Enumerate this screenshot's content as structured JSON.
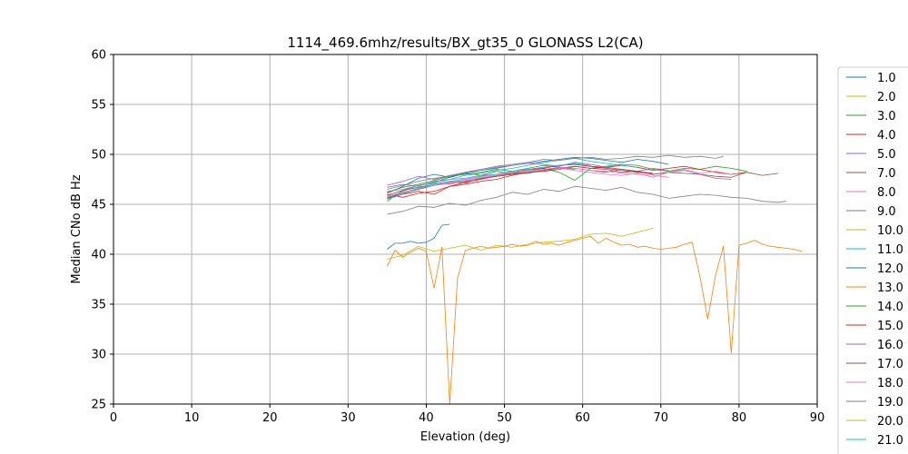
{
  "chart_data": {
    "type": "line",
    "title": "1114_469.6mhz/results/BX_gt35_0 GLONASS L2(CA)",
    "xlabel": "Elevation (deg)",
    "ylabel": "Median CNo dB Hz",
    "xlim": [
      0,
      90
    ],
    "ylim": [
      25,
      60
    ],
    "xticks": [
      0,
      10,
      20,
      30,
      40,
      50,
      60,
      70,
      80,
      90
    ],
    "yticks": [
      25,
      30,
      35,
      40,
      45,
      50,
      55,
      60
    ],
    "grid": true,
    "legend_position": "right, outside plot (clipped at bottom)",
    "series": [
      {
        "name": "1.0",
        "color": "#1f77b4",
        "x": [
          35,
          36,
          37,
          38,
          39,
          40,
          41,
          42,
          43
        ],
        "y": [
          40.5,
          41.1,
          41.1,
          41.3,
          41.1,
          41.2,
          41.6,
          42.9,
          43.0
        ]
      },
      {
        "name": "2.0",
        "color": "#bcbd22",
        "x": [
          35,
          37,
          39,
          41,
          43,
          45,
          47,
          49,
          51,
          53,
          55,
          57,
          59,
          61,
          63,
          65,
          67,
          69
        ],
        "y": [
          39.5,
          39.9,
          40.8,
          40.3,
          40.6,
          40.9,
          40.4,
          40.9,
          40.7,
          41.0,
          41.2,
          41.3,
          41.5,
          42.0,
          42.1,
          41.8,
          42.2,
          42.6
        ]
      },
      {
        "name": "3.0",
        "color": "#2ca02c",
        "x": [
          35,
          37,
          39,
          41,
          43,
          45,
          47,
          49,
          51,
          53,
          55,
          57,
          59,
          61,
          63,
          65,
          67,
          69,
          71,
          73,
          75,
          77,
          79,
          81
        ],
        "y": [
          45.3,
          46.4,
          46.9,
          47.2,
          47.7,
          48.1,
          47.9,
          48.3,
          48.0,
          48.5,
          48.6,
          48.2,
          47.4,
          48.6,
          48.8,
          49.0,
          48.9,
          48.5,
          48.3,
          48.6,
          48.5,
          48.8,
          48.6,
          48.3
        ]
      },
      {
        "name": "4.0",
        "color": "#d62728",
        "x": [
          35,
          37,
          39,
          41,
          43,
          45,
          47,
          49,
          51,
          53,
          55,
          57,
          59,
          61,
          63,
          65,
          67,
          69,
          71,
          73,
          75,
          77,
          79,
          81
        ],
        "y": [
          46.0,
          45.7,
          46.1,
          46.3,
          46.8,
          47.0,
          47.3,
          47.5,
          47.9,
          48.2,
          48.3,
          48.5,
          48.8,
          48.6,
          48.7,
          48.9,
          48.7,
          48.4,
          48.6,
          48.8,
          48.5,
          48.2,
          48.0,
          48.2
        ]
      },
      {
        "name": "5.0",
        "color": "#9467bd",
        "x": [
          35,
          37,
          39,
          41,
          43,
          45,
          47,
          49,
          51,
          53,
          55,
          57,
          59,
          61,
          63,
          65,
          67,
          69,
          71,
          73,
          75,
          77,
          79
        ],
        "y": [
          46.7,
          47.0,
          46.8,
          47.3,
          47.5,
          47.6,
          47.9,
          48.0,
          48.3,
          48.5,
          48.7,
          48.9,
          49.0,
          48.8,
          48.7,
          48.5,
          48.3,
          48.0,
          48.2,
          48.4,
          48.0,
          47.6,
          47.5
        ]
      },
      {
        "name": "7.0",
        "color": "#8c564b",
        "x": [
          35,
          37,
          39,
          41,
          43,
          45,
          47,
          49,
          51,
          53,
          55,
          57,
          59,
          61,
          63,
          65,
          67,
          69,
          71,
          73,
          75,
          77,
          79,
          81,
          83,
          85
        ],
        "y": [
          45.7,
          46.1,
          46.5,
          46.9,
          47.1,
          47.3,
          47.6,
          47.8,
          48.0,
          48.1,
          48.4,
          48.6,
          48.8,
          48.6,
          48.5,
          48.2,
          48.3,
          48.0,
          48.2,
          48.1,
          48.0,
          47.8,
          47.7,
          48.2,
          47.9,
          48.1
        ]
      },
      {
        "name": "8.0",
        "color": "#e377c2",
        "x": [
          35,
          37,
          39,
          41,
          43,
          45,
          47,
          49,
          51,
          53,
          55,
          57,
          59,
          61,
          63,
          65,
          67,
          69,
          71,
          73,
          75,
          77,
          79
        ],
        "y": [
          46.3,
          46.5,
          46.9,
          47.1,
          47.0,
          47.4,
          47.5,
          47.8,
          48.0,
          48.3,
          48.5,
          48.6,
          48.4,
          48.2,
          48.0,
          47.9,
          48.1,
          47.7,
          48.2,
          48.5,
          48.1,
          48.3,
          48.0
        ]
      },
      {
        "name": "9.0",
        "color": "#7f7f7f",
        "x": [
          35,
          37,
          39,
          41,
          43,
          45,
          47,
          49,
          51,
          53,
          55,
          57,
          59,
          61,
          63,
          65,
          67,
          69,
          71,
          73,
          75,
          77,
          79,
          81,
          83,
          85,
          86
        ],
        "y": [
          44.0,
          44.3,
          44.8,
          44.7,
          45.1,
          44.9,
          45.4,
          45.7,
          46.2,
          46.0,
          46.5,
          46.3,
          46.8,
          46.6,
          46.4,
          46.7,
          46.2,
          46.0,
          45.6,
          45.8,
          46.0,
          45.9,
          45.7,
          45.6,
          45.3,
          45.2,
          45.3
        ]
      },
      {
        "name": "10.0",
        "color": "#bcbd22",
        "x": [],
        "y": []
      },
      {
        "name": "11.0",
        "color": "#17becf",
        "x": [
          35,
          37,
          39,
          41,
          43,
          45,
          47,
          49,
          51,
          53,
          55,
          57,
          59,
          61,
          63,
          65,
          67
        ],
        "y": [
          45.6,
          46.3,
          46.9,
          47.1,
          47.5,
          47.9,
          48.1,
          48.4,
          48.6,
          48.9,
          49.2,
          49.4,
          49.6,
          49.3,
          49.1,
          48.9,
          48.7
        ]
      },
      {
        "name": "12.0",
        "color": "#1f77b4",
        "x": [
          35,
          37,
          39,
          41,
          43,
          45,
          47,
          49,
          51,
          53,
          55,
          57,
          59,
          61,
          63,
          65,
          67,
          69,
          71
        ],
        "y": [
          46.1,
          46.8,
          47.6,
          48.0,
          47.7,
          48.1,
          48.4,
          48.6,
          48.9,
          49.1,
          49.3,
          49.5,
          49.7,
          49.6,
          49.4,
          49.2,
          49.5,
          49.3,
          49.0
        ]
      },
      {
        "name": "13.0",
        "color": "#ff7f0e",
        "x": [
          35,
          36,
          37,
          38,
          39,
          40,
          41,
          42,
          43,
          44,
          45,
          46,
          47,
          48,
          49,
          50,
          51,
          52,
          53,
          54,
          55,
          56,
          57,
          58,
          59,
          60,
          61,
          62,
          63,
          64,
          65,
          66,
          67,
          68,
          69,
          70,
          71,
          72,
          73,
          74,
          75,
          76,
          77,
          78,
          79,
          80,
          81,
          82,
          83,
          84,
          85,
          86,
          87,
          88
        ],
        "y": [
          38.8,
          40.4,
          39.7,
          40.2,
          40.6,
          40.3,
          36.6,
          40.7,
          25.0,
          37.6,
          40.4,
          40.6,
          40.8,
          40.6,
          40.7,
          40.8,
          41.0,
          40.8,
          40.9,
          41.3,
          41.0,
          41.1,
          40.9,
          41.2,
          41.4,
          41.6,
          41.8,
          41.1,
          41.6,
          41.2,
          40.9,
          41.0,
          40.7,
          40.8,
          40.6,
          40.5,
          40.6,
          40.7,
          41.0,
          41.2,
          37.8,
          33.5,
          37.9,
          40.8,
          30.1,
          40.9,
          41.1,
          41.4,
          41.0,
          40.8,
          40.7,
          40.6,
          40.5,
          40.3
        ]
      },
      {
        "name": "14.0",
        "color": "#2ca02c",
        "x": [
          35,
          37,
          39,
          41,
          43,
          45,
          47,
          49,
          51,
          53,
          55,
          57,
          59
        ],
        "y": [
          46.2,
          46.7,
          47.0,
          47.4,
          47.8,
          48.0,
          48.2,
          48.5,
          48.3,
          48.6,
          48.9,
          48.7,
          48.5
        ]
      },
      {
        "name": "15.0",
        "color": "#d62728",
        "x": [
          35,
          37,
          39,
          41,
          43,
          45,
          47,
          49,
          51,
          53,
          55,
          57,
          59,
          61,
          63,
          65,
          67,
          69
        ],
        "y": [
          45.6,
          46.0,
          46.3,
          46.0,
          46.8,
          47.2,
          47.5,
          47.9,
          48.1,
          48.4,
          48.6,
          48.9,
          49.0,
          48.8,
          48.6,
          48.4,
          48.2,
          48.1
        ]
      },
      {
        "name": "16.0",
        "color": "#9467bd",
        "x": [
          35,
          37,
          39,
          41,
          43,
          45,
          47,
          49,
          51,
          53,
          55,
          57,
          59,
          61,
          63,
          65,
          67,
          69,
          71
        ],
        "y": [
          46.9,
          47.3,
          47.8,
          47.5,
          47.9,
          48.2,
          48.4,
          48.7,
          48.9,
          49.1,
          49.0,
          48.8,
          49.2,
          49.0,
          48.7,
          48.5,
          48.3,
          48.6,
          48.4
        ]
      },
      {
        "name": "17.0",
        "color": "#8c564b",
        "x": [
          35,
          37,
          39,
          41,
          43,
          45,
          47,
          49,
          51,
          53,
          55,
          57,
          59,
          61,
          63,
          65,
          67,
          69
        ],
        "y": [
          45.9,
          46.4,
          46.7,
          47.0,
          47.3,
          47.1,
          47.6,
          47.8,
          48.0,
          48.2,
          48.4,
          48.7,
          48.6,
          48.4,
          48.2,
          48.5,
          48.3,
          48.1
        ]
      },
      {
        "name": "18.0",
        "color": "#e377c2",
        "x": [
          35,
          37,
          39,
          41,
          43,
          45,
          47,
          49,
          51,
          53,
          55,
          57,
          59,
          61,
          63,
          65,
          67,
          69,
          71
        ],
        "y": [
          45.8,
          46.2,
          46.6,
          46.9,
          47.2,
          47.4,
          47.7,
          47.9,
          48.2,
          48.4,
          48.5,
          48.7,
          48.6,
          48.4,
          48.3,
          48.1,
          48.0,
          47.9,
          47.7
        ]
      },
      {
        "name": "19.0",
        "color": "#7f7f7f",
        "x": [
          35,
          37,
          39,
          41,
          43,
          45,
          47,
          49,
          51,
          53,
          55,
          57,
          59,
          61,
          63,
          65,
          67,
          69,
          71,
          73,
          75,
          77,
          78
        ],
        "y": [
          46.5,
          46.9,
          47.3,
          47.6,
          47.8,
          48.2,
          48.5,
          48.8,
          49.0,
          49.2,
          49.5,
          49.4,
          49.6,
          49.7,
          49.5,
          49.6,
          49.8,
          49.7,
          49.9,
          49.7,
          49.8,
          49.6,
          49.8
        ]
      },
      {
        "name": "20.0",
        "color": "#bcbd22",
        "x": [],
        "y": []
      },
      {
        "name": "21.0",
        "color": "#17becf",
        "x": [
          35,
          37,
          39,
          41,
          43,
          45,
          47,
          49,
          51,
          53,
          55,
          57,
          59,
          61
        ],
        "y": [
          45.5,
          46.0,
          46.6,
          47.0,
          47.3,
          47.5,
          47.8,
          48.0,
          48.3,
          48.5,
          48.7,
          48.9,
          49.1,
          48.9
        ]
      }
    ]
  }
}
